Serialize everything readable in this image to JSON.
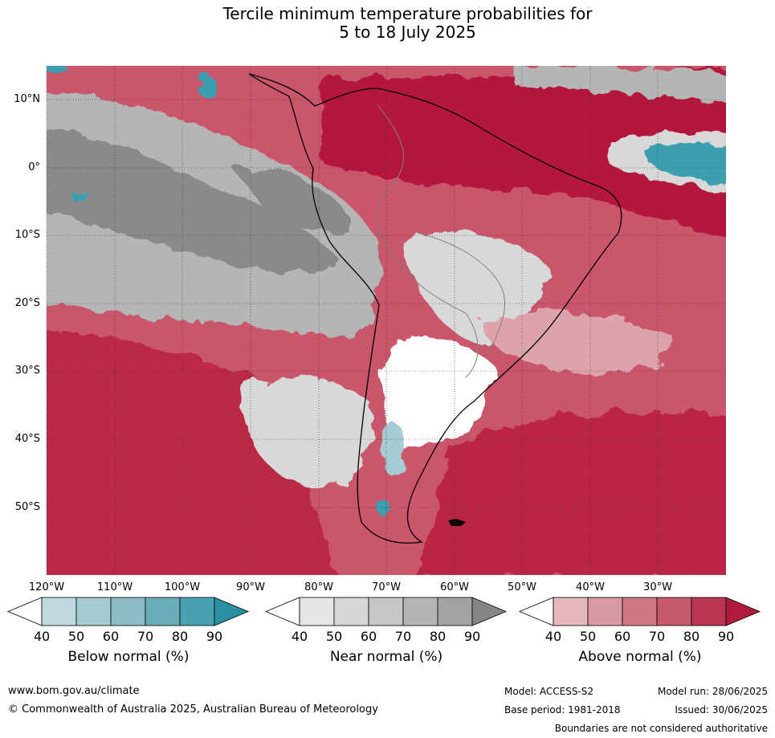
{
  "title": {
    "line1": "Tercile minimum temperature probabilities for",
    "line2": "5 to 18 July 2025"
  },
  "map": {
    "lat_labels": [
      "10°N",
      "0°",
      "10°S",
      "20°S",
      "30°S",
      "40°S",
      "50°S"
    ],
    "lon_labels": [
      "120°W",
      "110°W",
      "100°W",
      "90°W",
      "80°W",
      "70°W",
      "60°W",
      "50°W",
      "40°W",
      "30°W"
    ],
    "colors": {
      "ocean_grey_dark": "#8a8a8a",
      "grey_mid": "#b5b5b5",
      "grey_light": "#d8d8d8",
      "red_dark": "#b5193a",
      "red_mid": "#c9566a",
      "red_light": "#dca3ab",
      "teal": "#3b9fb0",
      "white": "#ffffff"
    }
  },
  "legends": [
    {
      "title": "Below normal (%)",
      "ticks": [
        "40",
        "50",
        "60",
        "70",
        "80",
        "90"
      ],
      "colors": [
        "#ffffff",
        "#bfd9df",
        "#a6cbd2",
        "#8dbcc5",
        "#6aadb9",
        "#4a9fb0",
        "#2b8fa3"
      ]
    },
    {
      "title": "Near normal (%)",
      "ticks": [
        "40",
        "50",
        "60",
        "70",
        "80",
        "90"
      ],
      "colors": [
        "#ffffff",
        "#e6e6e6",
        "#d6d6d6",
        "#c6c6c6",
        "#b5b5b5",
        "#a3a3a3",
        "#858585"
      ]
    },
    {
      "title": "Above normal (%)",
      "ticks": [
        "40",
        "50",
        "60",
        "70",
        "80",
        "90"
      ],
      "colors": [
        "#ffffff",
        "#e3b7bd",
        "#d99aa3",
        "#cf7884",
        "#c65a6a",
        "#bb3650",
        "#b01a3b"
      ]
    }
  ],
  "footer": {
    "website": "www.bom.gov.au/climate",
    "copyright": "© Commonwealth of Australia 2025, Australian Bureau of Meteorology",
    "model": "Model: ACCESS-S2",
    "base_period": "Base period: 1981-2018",
    "model_run": "Model run: 28/06/2025",
    "issued": "Issued: 30/06/2025",
    "disclaimer": "Boundaries are not considered authoritative"
  }
}
